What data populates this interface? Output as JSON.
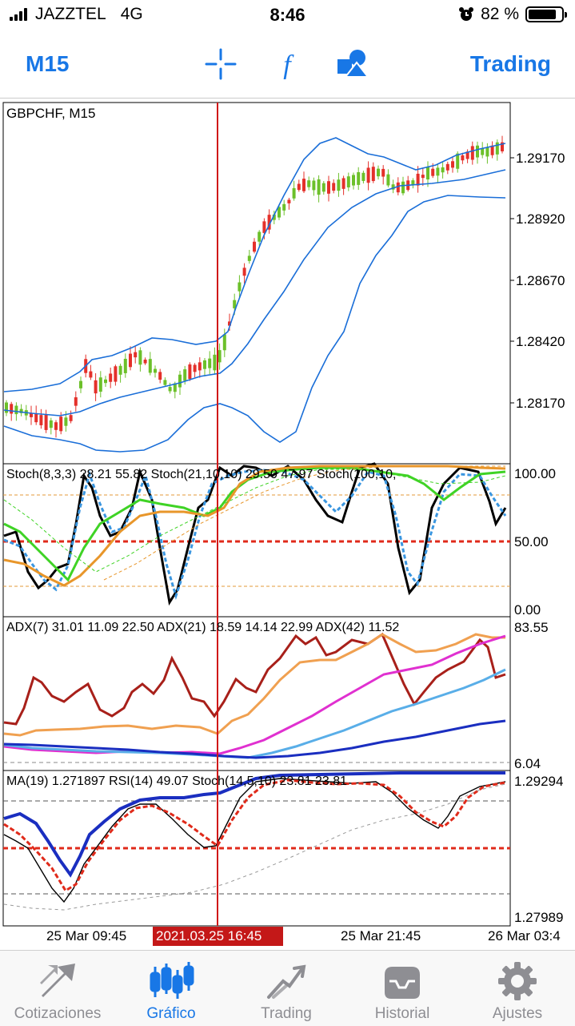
{
  "status_bar": {
    "carrier": "JAZZTEL",
    "network": "4G",
    "time": "8:46",
    "battery": "82 %"
  },
  "toolbar": {
    "timeframe": "M15",
    "trading_label": "Trading",
    "icons": [
      "crosshair-icon",
      "function-icon",
      "objects-icon"
    ]
  },
  "chart": {
    "symbol_label": "GBPCHF, M15",
    "price_axis": [
      "1.29170",
      "1.28920",
      "1.28670",
      "1.28420",
      "1.28170"
    ],
    "stoch_label": "Stoch(8,3,3) 28.21 55.82 Stoch(21,10,10) 29.50 47.97 Stoch(100,10,",
    "stoch_axis": [
      "100.00",
      "50.00",
      "0.00"
    ],
    "adx_label": "ADX(7) 31.01 11.09 22.50 ADX(21) 18.59 14.14 22.99 ADX(42) 11.52",
    "adx_axis": [
      "83.55",
      "6.04"
    ],
    "ma_label": "MA(19) 1.271897 RSI(14) 49.07 Stoch(14,5,10) 23.81 23.81",
    "ma_axis": [
      "1.29294",
      "1.27989"
    ],
    "time_axis": [
      "25 Mar 09:45",
      "25 Mar 21:45",
      "26 Mar 03:4"
    ],
    "cursor_label": "2021.03.25 16:45",
    "colors": {
      "bull": "#6cc02a",
      "bear": "#e4302a",
      "band": "#1a6ed8",
      "cursor": "#d01818"
    }
  },
  "tabs": [
    {
      "label": "Cotizaciones",
      "icon": "quotes-icon",
      "active": false
    },
    {
      "label": "Gráfico",
      "icon": "chart-icon",
      "active": true
    },
    {
      "label": "Trading",
      "icon": "trading-icon",
      "active": false
    },
    {
      "label": "Historial",
      "icon": "history-icon",
      "active": false
    },
    {
      "label": "Ajustes",
      "icon": "settings-icon",
      "active": false
    }
  ]
}
